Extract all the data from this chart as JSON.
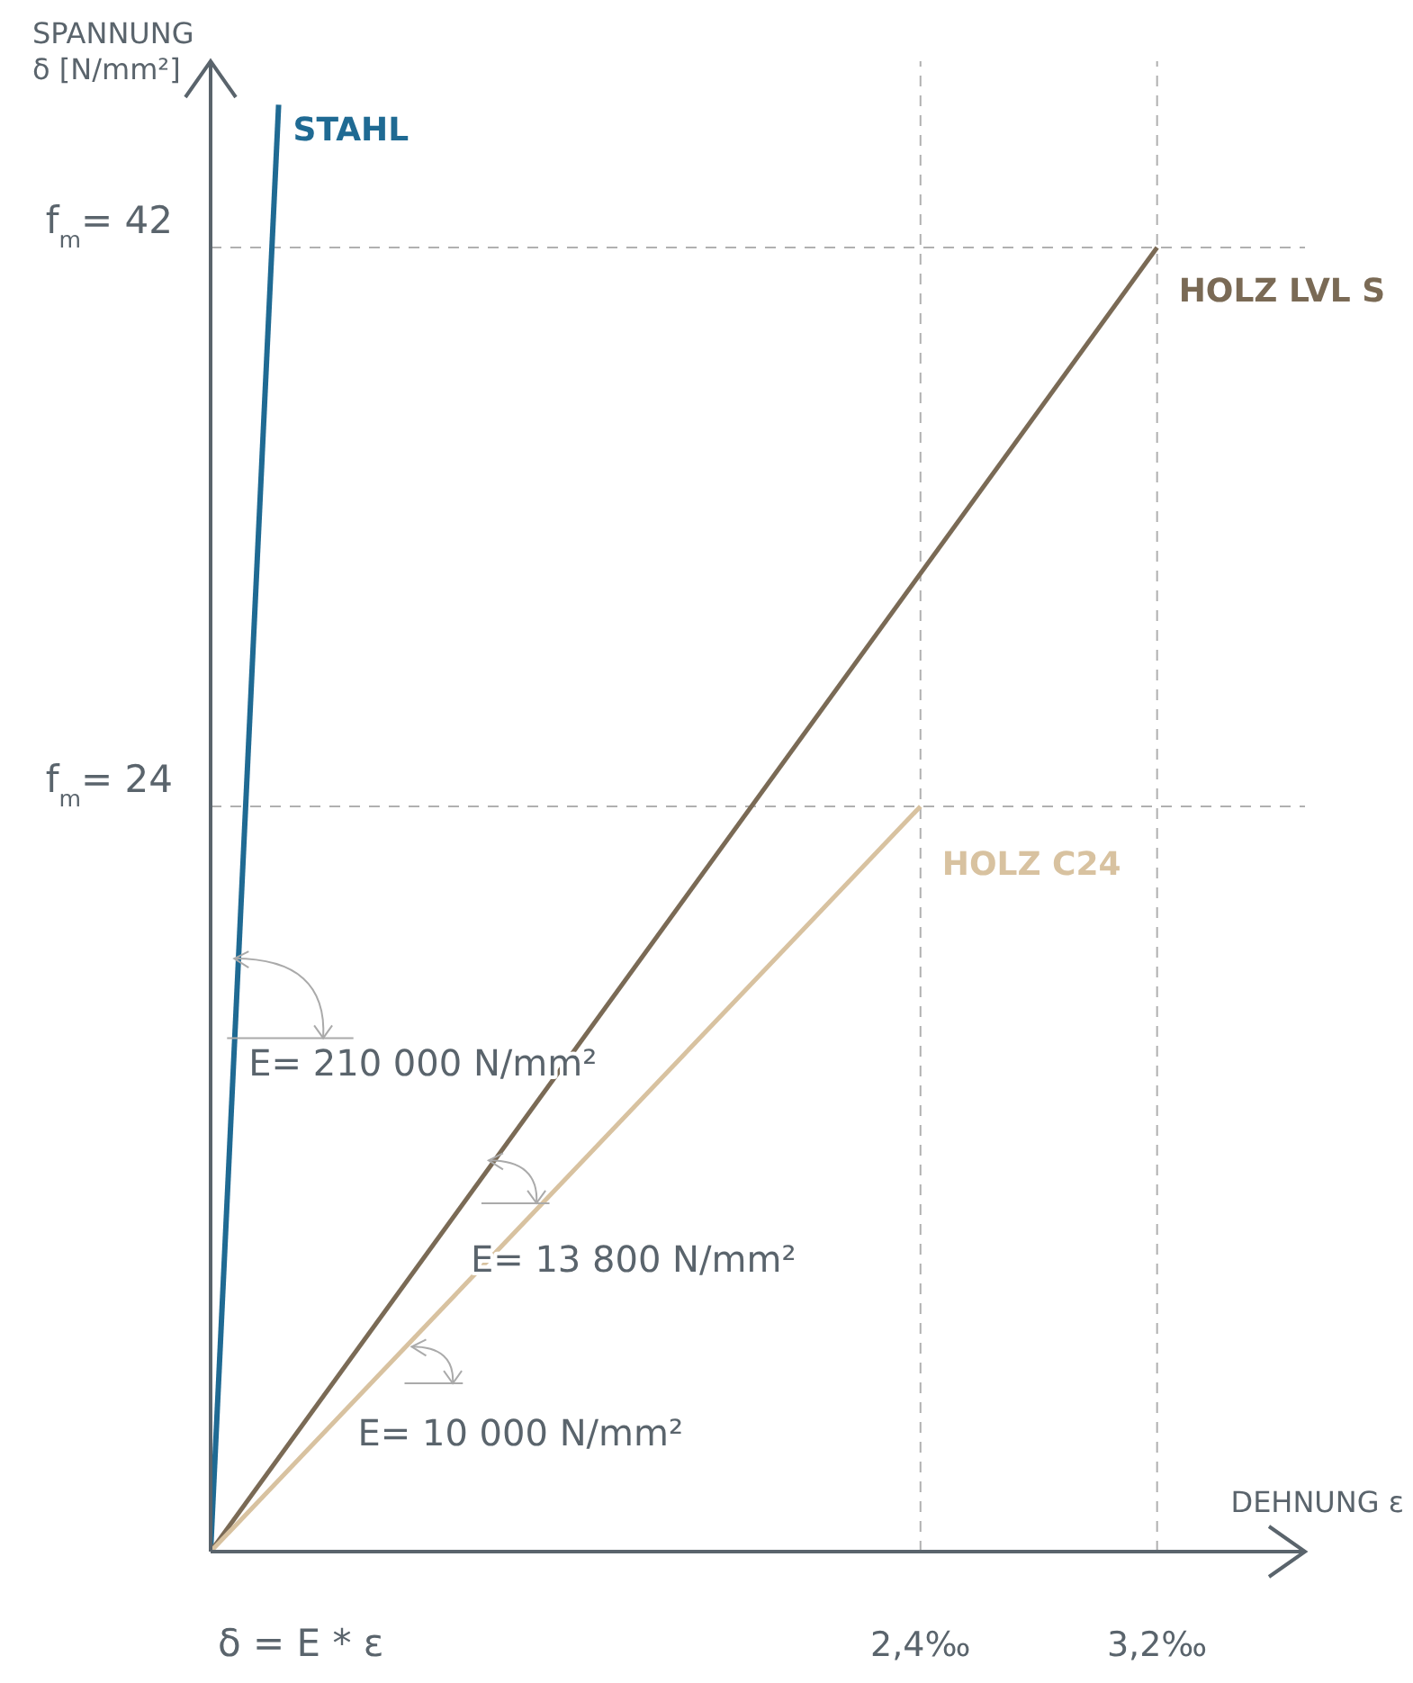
{
  "chart_data": {
    "type": "line",
    "ylabel": "SPANNUNG\nδ [N/mm²]",
    "xlabel": "DEHNUNG ε",
    "xlim": [
      0,
      3.7
    ],
    "ylim": [
      0,
      48
    ],
    "xticks": [
      {
        "value": 2.4,
        "label": "2,4‰"
      },
      {
        "value": 3.2,
        "label": "3,2‰"
      }
    ],
    "yticks": [
      {
        "value": 24,
        "label": "f$_{m}$= 24"
      },
      {
        "value": 42,
        "label": "f$_{m}$= 42"
      }
    ],
    "series": [
      {
        "name": "STAHL",
        "color": "#1f6a93",
        "x": [
          0,
          0.23
        ],
        "values": [
          0,
          46.6
        ]
      },
      {
        "name": "HOLZ LVL S",
        "color": "#7a6a55",
        "x": [
          0,
          3.2
        ],
        "values": [
          0,
          42
        ]
      },
      {
        "name": "HOLZ C24",
        "color": "#d8c2a0",
        "x": [
          0,
          2.4
        ],
        "values": [
          0,
          24
        ]
      }
    ],
    "ref_lines": [
      {
        "axis": "y",
        "value": 42,
        "line_style": "dashed",
        "color": "#b0b0b0"
      },
      {
        "axis": "y",
        "value": 24,
        "line_style": "dashed",
        "color": "#b0b0b0"
      },
      {
        "axis": "x",
        "value": 2.4,
        "line_style": "dashed",
        "color": "#b0b0b0"
      },
      {
        "axis": "x",
        "value": 3.2,
        "line_style": "dashed",
        "color": "#b0b0b0"
      }
    ],
    "annotations": [
      {
        "text": "E= 210 000 N/mm²",
        "x": 0.08,
        "y": 19.1
      },
      {
        "text": "E= 13 800 N/mm²",
        "x": 0.94,
        "y": 12.6
      },
      {
        "text": "E= 10 000 N/mm²",
        "x": 0.68,
        "y": 6.6
      },
      "δ = E * ε"
    ],
    "line_style": "solid"
  }
}
